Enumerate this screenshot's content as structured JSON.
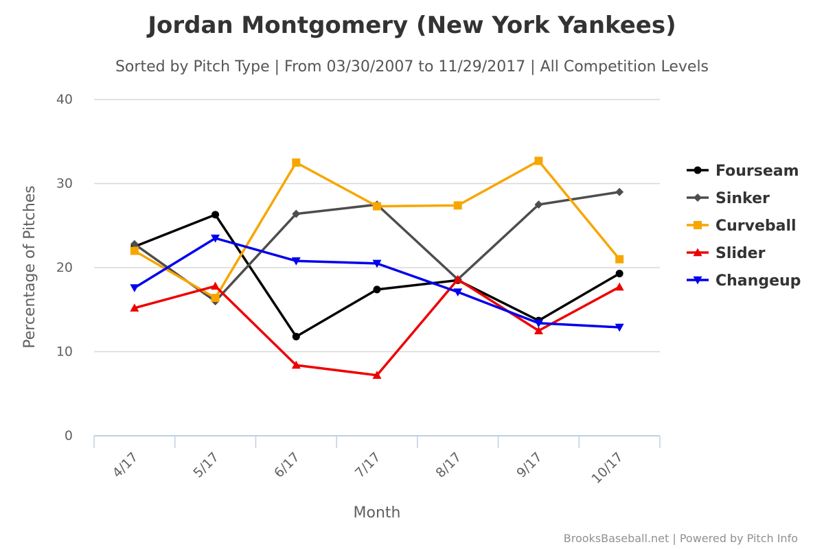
{
  "chart_data": {
    "type": "line",
    "title": "Jordan Montgomery (New York Yankees)",
    "subtitle": "Sorted by Pitch Type | From 03/30/2007 to 11/29/2017 | All Competition Levels",
    "xlabel": "Month",
    "ylabel": "Percentage of Pitches",
    "categories": [
      "4/17",
      "5/17",
      "6/17",
      "7/17",
      "8/17",
      "9/17",
      "10/17"
    ],
    "ylim": [
      0,
      40
    ],
    "yticks": [
      0,
      10,
      20,
      30,
      40
    ],
    "grid": true,
    "legend_position": "right",
    "series": [
      {
        "name": "Fourseam",
        "color": "#000000",
        "marker": "circle",
        "values": [
          22.5,
          26.3,
          11.8,
          17.4,
          18.5,
          13.7,
          19.3
        ]
      },
      {
        "name": "Sinker",
        "color": "#4d4d4d",
        "marker": "diamond",
        "values": [
          22.8,
          16.0,
          26.4,
          27.5,
          18.6,
          27.5,
          29.0
        ]
      },
      {
        "name": "Curveball",
        "color": "#f7a600",
        "marker": "square",
        "values": [
          22.0,
          16.4,
          32.5,
          27.3,
          27.4,
          32.7,
          21.0
        ]
      },
      {
        "name": "Slider",
        "color": "#ee0000",
        "marker": "triangle-up",
        "values": [
          15.2,
          17.8,
          8.4,
          7.2,
          18.6,
          12.5,
          17.7
        ]
      },
      {
        "name": "Changeup",
        "color": "#0000ee",
        "marker": "triangle-down",
        "values": [
          17.6,
          23.5,
          20.8,
          20.5,
          17.1,
          13.4,
          12.9
        ]
      }
    ]
  },
  "credits": "BrooksBaseball.net | Powered by Pitch Info"
}
